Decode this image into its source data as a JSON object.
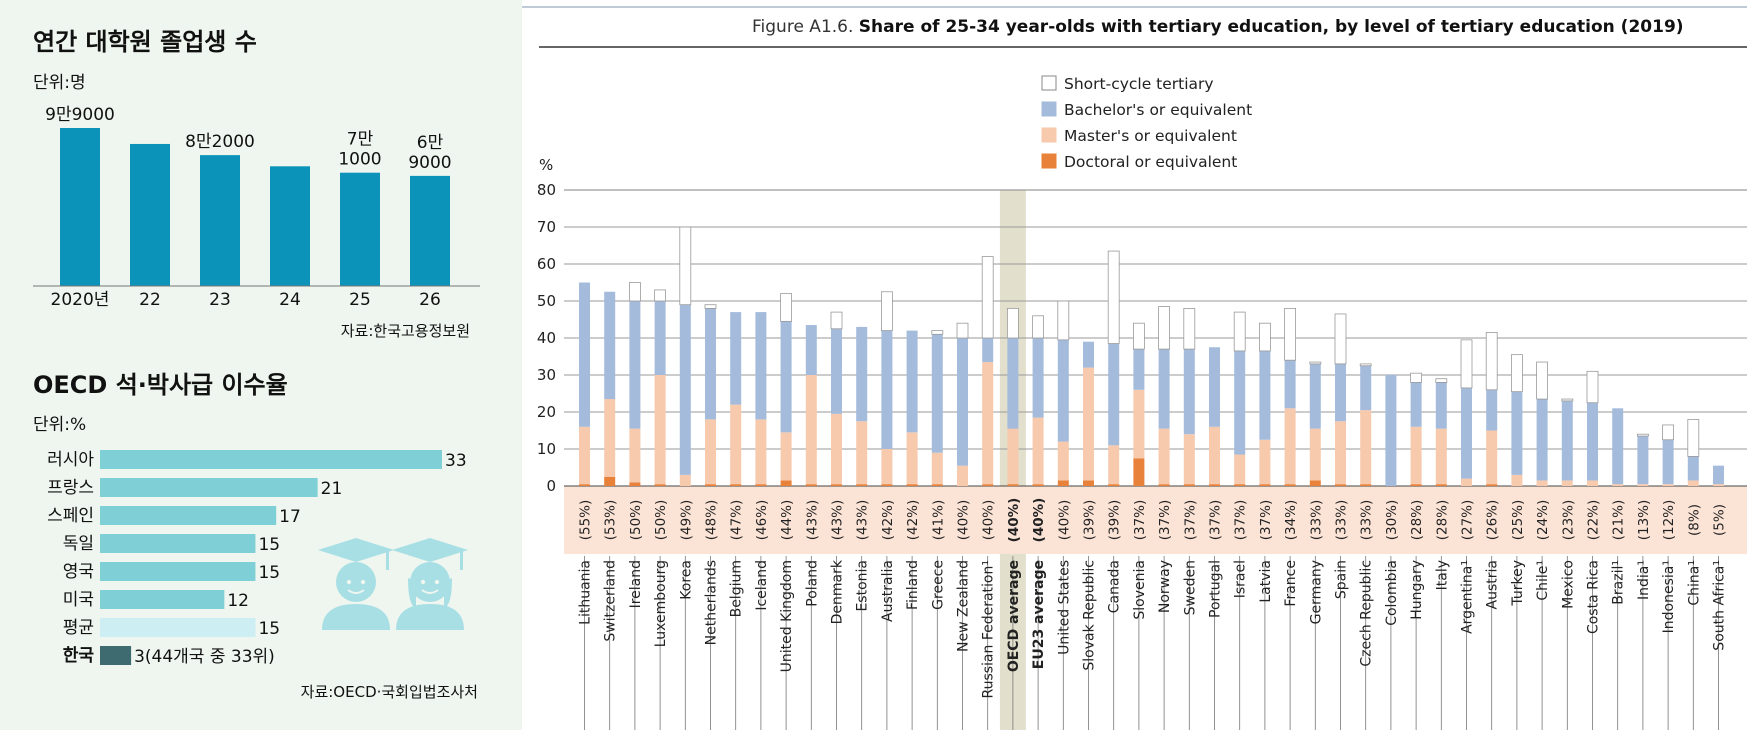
{
  "panels": {
    "graduates": {
      "title": "연간 대학원 졸업생 수",
      "unit": "단위:명",
      "source": "자료:한국고용정보원",
      "color": "#0b93b9"
    },
    "oecd_rate": {
      "title": "OECD 석·박사급 이수율",
      "unit": "단위:%",
      "source": "자료:OECD·국회입법조사처",
      "bar_color": "#7fd0d6",
      "avg_color": "#cdeef2",
      "korea_color": "#3d6b70",
      "korea_label": "3(44개국 중 33위)"
    },
    "tertiary": {
      "figure_label": "Figure A1.6.",
      "title": "Share of 25-34 year-olds with tertiary education, by level of tertiary education (2019)",
      "y_unit": "%",
      "legend": [
        "Short-cycle tertiary",
        "Bachelor's or equivalent",
        "Master's or equivalent",
        "Doctoral or equivalent"
      ],
      "colors": {
        "short": "#ffffff",
        "bachelor": "#a4bbdc",
        "master": "#f7c9ad",
        "doctoral": "#e8823a",
        "band": "#fbe3d6",
        "highlight": "#e2e0cc"
      }
    }
  },
  "chart_data": [
    {
      "type": "bar",
      "title": "연간 대학원 졸업생 수",
      "ylabel": "단위:명",
      "categories": [
        "2020년",
        "22",
        "23",
        "24",
        "25",
        "26"
      ],
      "values": [
        99000,
        89000,
        82000,
        75000,
        71000,
        69000
      ],
      "data_labels": [
        "9만9000",
        "",
        "8만2000",
        "",
        "7만\n1000",
        "6만\n9000"
      ],
      "ylim": [
        0,
        105000
      ]
    },
    {
      "type": "bar",
      "orientation": "horizontal",
      "title": "OECD 석·박사급 이수율",
      "ylabel": "단위:%",
      "categories": [
        "러시아",
        "프랑스",
        "스페인",
        "독일",
        "영국",
        "미국",
        "평균",
        "한국"
      ],
      "values": [
        33,
        21,
        17,
        15,
        15,
        12,
        15,
        3
      ],
      "data_labels": [
        "33",
        "21",
        "17",
        "15",
        "15",
        "12",
        "15",
        "3(44개국 중 33위)"
      ]
    },
    {
      "type": "bar",
      "stacked": true,
      "title": "Share of 25-34 year-olds with tertiary education, by level of tertiary education (2019)",
      "ylabel": "%",
      "ylim": [
        0,
        80
      ],
      "yticks": [
        0,
        10,
        20,
        30,
        40,
        50,
        60,
        70,
        80
      ],
      "grid": true,
      "legend_position": "top-center",
      "highlighted": [
        "OECD average"
      ],
      "categories": [
        "Lithuania",
        "Switzerland",
        "Ireland",
        "Luxembourg",
        "Korea",
        "Netherlands",
        "Belgium",
        "Iceland",
        "United Kingdom",
        "Poland",
        "Denmark",
        "Estonia",
        "Australia",
        "Finland",
        "Greece",
        "New Zealand",
        "Russian Federation¹",
        "OECD average",
        "EU23 average",
        "United States",
        "Slovak Republic",
        "Canada",
        "Slovenia",
        "Norway",
        "Sweden",
        "Portugal",
        "Israel",
        "Latvia",
        "France",
        "Germany",
        "Spain",
        "Czech Republic",
        "Colombia",
        "Hungary",
        "Italy",
        "Argentina¹",
        "Austria",
        "Turkey",
        "Chile¹",
        "Mexico",
        "Costa Rica",
        "Brazil¹",
        "India¹",
        "Indonesia¹",
        "China¹",
        "South Africa¹"
      ],
      "category_labels": [
        "(55%)",
        "(53%)",
        "(50%)",
        "(50%)",
        "(49%)",
        "(48%)",
        "(47%)",
        "(46%)",
        "(44%)",
        "(43%)",
        "(43%)",
        "(43%)",
        "(42%)",
        "(42%)",
        "(41%)",
        "(40%)",
        "(40%)",
        "(40%)",
        "(40%)",
        "(40%)",
        "(39%)",
        "(39%)",
        "(37%)",
        "(37%)",
        "(37%)",
        "(37%)",
        "(37%)",
        "(37%)",
        "(34%)",
        "(33%)",
        "(33%)",
        "(33%)",
        "(30%)",
        "(28%)",
        "(28%)",
        "(27%)",
        "(26%)",
        "(25%)",
        "(24%)",
        "(23%)",
        "(22%)",
        "(21%)",
        "(13%)",
        "(12%)",
        "(8%)",
        "(5%)"
      ],
      "series": [
        {
          "name": "Doctoral or equivalent",
          "values": [
            0.5,
            2.5,
            1,
            0.5,
            0,
            0.5,
            0.5,
            0.5,
            1.5,
            0.5,
            0.5,
            0.5,
            0.5,
            0.5,
            0.5,
            0,
            0.5,
            0.5,
            0.5,
            1.5,
            1.5,
            0.5,
            7.5,
            0.5,
            0.5,
            0.5,
            0.5,
            0.5,
            0.5,
            1.5,
            0.5,
            0.5,
            0,
            0.5,
            0.5,
            0,
            0.5,
            0,
            0,
            0,
            0,
            0,
            0,
            0,
            0,
            0
          ]
        },
        {
          "name": "Master's or equivalent",
          "values": [
            15.5,
            21,
            14.5,
            29.5,
            3,
            17.5,
            21.5,
            17.5,
            13,
            29.5,
            19,
            17,
            9.5,
            14,
            8.5,
            5.5,
            33,
            15,
            18,
            10.5,
            30.5,
            10.5,
            18.5,
            15,
            13.5,
            15.5,
            8,
            12,
            20.5,
            14,
            17,
            20,
            0,
            15.5,
            15,
            2,
            14.5,
            3,
            1.5,
            1.5,
            1.5,
            0.5,
            0.5,
            0.5,
            1.5,
            0.5
          ]
        },
        {
          "name": "Bachelor's or equivalent",
          "values": [
            39,
            29,
            34.5,
            20,
            46,
            30,
            25,
            29,
            30,
            13.5,
            23,
            25.5,
            32,
            27.5,
            32,
            34.5,
            6.5,
            24.5,
            21.5,
            27.5,
            7,
            27.5,
            11,
            21.5,
            23,
            21.5,
            28,
            24,
            13,
            17.5,
            15.5,
            12,
            30,
            12,
            12.5,
            24.5,
            11,
            22.5,
            22,
            21.5,
            21,
            20.5,
            13,
            12,
            6.5,
            5
          ]
        },
        {
          "name": "Short-cycle tertiary",
          "values": [
            0,
            0,
            5,
            3,
            21,
            1,
            0,
            0,
            7.5,
            0,
            4.5,
            0,
            10.5,
            0,
            1,
            4,
            22,
            8,
            6,
            10.5,
            0,
            25,
            7,
            11.5,
            11,
            0,
            10.5,
            7.5,
            14,
            0.5,
            13.5,
            0.5,
            0,
            2.5,
            1,
            13,
            15.5,
            10,
            10,
            0.5,
            8.5,
            0,
            0.5,
            4,
            10,
            0
          ]
        }
      ]
    }
  ]
}
